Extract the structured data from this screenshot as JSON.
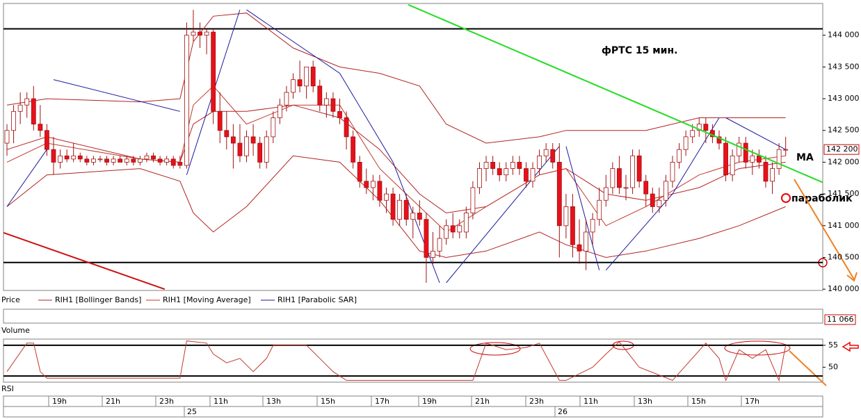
{
  "chart_data": {
    "type": "candlestick",
    "title": "фРТС   15 мин.",
    "annotations": {
      "ma": "МА",
      "sar": "параболик"
    },
    "last_price": {
      "value": 142200,
      "label": "142 200"
    },
    "ylim": [
      139980,
      144500
    ],
    "yticks": [
      {
        "value": 140000,
        "label": "140 000"
      },
      {
        "value": 140500,
        "label": "140 500"
      },
      {
        "value": 141000,
        "label": "141 000"
      },
      {
        "value": 141500,
        "label": "141 500"
      },
      {
        "value": 142000,
        "label": "142 000"
      },
      {
        "value": 142500,
        "label": "142 500"
      },
      {
        "value": 143000,
        "label": "143 000"
      },
      {
        "value": 143500,
        "label": "143 500"
      },
      {
        "value": 144000,
        "label": "144 000"
      }
    ],
    "hlines": [
      144100,
      140420
    ],
    "trendlines": [
      {
        "color": "#22dd22",
        "x": [
          60.3,
          122.6
        ],
        "values": [
          144480,
          141680
        ]
      },
      {
        "color": "#cc1111",
        "x": [
          -0.5,
          23.7
        ],
        "values": [
          140890,
          140000
        ]
      }
    ],
    "up_color": "#ffffff",
    "down_color": "#e8101a",
    "outline_color": "#a01010",
    "candles": [
      [
        142300,
        142600,
        142100,
        142500
      ],
      [
        142500,
        142900,
        142300,
        142800
      ],
      [
        142800,
        143100,
        142600,
        142900
      ],
      [
        142900,
        143100,
        142700,
        143000
      ],
      [
        143000,
        143200,
        142500,
        142600
      ],
      [
        142600,
        142900,
        142400,
        142500
      ],
      [
        142500,
        142600,
        142100,
        142200
      ],
      [
        142200,
        142400,
        141800,
        142000
      ],
      [
        142000,
        142200,
        141900,
        142100
      ],
      [
        142100,
        142200,
        142000,
        142050
      ],
      [
        142050,
        142300,
        142000,
        142100
      ],
      [
        142100,
        142150,
        142000,
        142050
      ],
      [
        142050,
        142100,
        141950,
        142000
      ],
      [
        142000,
        142100,
        141950,
        142050
      ],
      [
        142050,
        142100,
        142000,
        142050
      ],
      [
        142050,
        142100,
        141950,
        142000
      ],
      [
        142000,
        142100,
        141950,
        142050
      ],
      [
        142050,
        142100,
        142000,
        142000
      ],
      [
        142000,
        142100,
        141950,
        142050
      ],
      [
        142050,
        142100,
        141950,
        142000
      ],
      [
        142000,
        142100,
        141950,
        142050
      ],
      [
        142050,
        142150,
        142000,
        142100
      ],
      [
        142100,
        142150,
        142000,
        142050
      ],
      [
        142050,
        142100,
        141950,
        142000
      ],
      [
        142000,
        142100,
        141950,
        142050
      ],
      [
        142050,
        142100,
        141900,
        141950
      ],
      [
        142000,
        142100,
        141900,
        141950
      ],
      [
        141950,
        144200,
        141900,
        144000
      ],
      [
        144000,
        144400,
        143900,
        144050
      ],
      [
        144050,
        144200,
        143800,
        144000
      ],
      [
        144000,
        144100,
        143700,
        144050
      ],
      [
        144050,
        144100,
        142600,
        142800
      ],
      [
        142800,
        143100,
        142300,
        142500
      ],
      [
        142500,
        142800,
        142200,
        142400
      ],
      [
        142400,
        142600,
        141900,
        142300
      ],
      [
        142300,
        142600,
        142000,
        142100
      ],
      [
        142100,
        142500,
        142000,
        142400
      ],
      [
        142400,
        142600,
        142100,
        142300
      ],
      [
        142300,
        142400,
        141900,
        142000
      ],
      [
        142000,
        142500,
        141900,
        142400
      ],
      [
        142400,
        142800,
        142300,
        142700
      ],
      [
        142700,
        143000,
        142600,
        142900
      ],
      [
        142900,
        143200,
        142800,
        143100
      ],
      [
        143100,
        143400,
        143000,
        143300
      ],
      [
        143300,
        143600,
        143100,
        143200
      ],
      [
        143200,
        143500,
        143000,
        143500
      ],
      [
        143500,
        143600,
        143100,
        143200
      ],
      [
        143200,
        143300,
        142800,
        142900
      ],
      [
        142900,
        143100,
        142700,
        143000
      ],
      [
        143000,
        143100,
        142700,
        142800
      ],
      [
        142800,
        143000,
        142600,
        142700
      ],
      [
        142700,
        142800,
        142200,
        142400
      ],
      [
        142400,
        142500,
        141900,
        142000
      ],
      [
        142000,
        142100,
        141600,
        141700
      ],
      [
        141700,
        141900,
        141500,
        141600
      ],
      [
        141600,
        141800,
        141400,
        141700
      ],
      [
        141700,
        141800,
        141300,
        141400
      ],
      [
        141400,
        141600,
        141200,
        141500
      ],
      [
        141500,
        141600,
        141000,
        141100
      ],
      [
        141100,
        141500,
        141000,
        141400
      ],
      [
        141400,
        141500,
        141000,
        141100
      ],
      [
        141100,
        141300,
        140800,
        141200
      ],
      [
        141200,
        141400,
        141000,
        141100
      ],
      [
        141100,
        141200,
        140100,
        140500
      ],
      [
        140500,
        140900,
        140400,
        140600
      ],
      [
        140600,
        141000,
        140500,
        140800
      ],
      [
        140800,
        141100,
        140700,
        141000
      ],
      [
        141000,
        141200,
        140800,
        140900
      ],
      [
        140900,
        141100,
        140800,
        141000
      ],
      [
        140900,
        141300,
        140800,
        141200
      ],
      [
        141200,
        141700,
        141100,
        141600
      ],
      [
        141600,
        142000,
        141500,
        141900
      ],
      [
        141900,
        142100,
        141700,
        142000
      ],
      [
        142000,
        142100,
        141800,
        141900
      ],
      [
        141900,
        142000,
        141700,
        141800
      ],
      [
        141800,
        142000,
        141700,
        141900
      ],
      [
        141900,
        142100,
        141800,
        142000
      ],
      [
        142000,
        142100,
        141800,
        141900
      ],
      [
        141900,
        142000,
        141600,
        141700
      ],
      [
        141700,
        142000,
        141600,
        141900
      ],
      [
        141900,
        142200,
        141800,
        142100
      ],
      [
        142100,
        142300,
        142000,
        142200
      ],
      [
        142200,
        142300,
        141900,
        142000
      ],
      [
        142000,
        142300,
        140500,
        141000
      ],
      [
        141000,
        141500,
        140800,
        141300
      ],
      [
        141300,
        141500,
        140500,
        140700
      ],
      [
        140700,
        141100,
        140400,
        140600
      ],
      [
        140600,
        141100,
        140300,
        140900
      ],
      [
        140900,
        141200,
        140700,
        141100
      ],
      [
        141100,
        141600,
        141000,
        141400
      ],
      [
        141400,
        141800,
        141300,
        141600
      ],
      [
        141600,
        142000,
        141500,
        141900
      ],
      [
        141900,
        142100,
        141500,
        141600
      ],
      [
        141600,
        141800,
        141400,
        141600
      ],
      [
        141600,
        142200,
        141500,
        142100
      ],
      [
        142100,
        142200,
        141600,
        141700
      ],
      [
        141700,
        141800,
        141300,
        141500
      ],
      [
        141500,
        141600,
        141200,
        141300
      ],
      [
        141300,
        141600,
        141200,
        141400
      ],
      [
        141400,
        141800,
        141300,
        141700
      ],
      [
        141700,
        142100,
        141600,
        142000
      ],
      [
        142000,
        142300,
        141900,
        142200
      ],
      [
        142200,
        142500,
        142100,
        142400
      ],
      [
        142400,
        142600,
        142300,
        142500
      ],
      [
        142500,
        142700,
        142400,
        142600
      ],
      [
        142600,
        142700,
        142300,
        142500
      ],
      [
        142500,
        142600,
        142300,
        142400
      ],
      [
        142400,
        142500,
        142200,
        142300
      ],
      [
        142300,
        142400,
        141700,
        141800
      ],
      [
        141800,
        142200,
        141700,
        142100
      ],
      [
        142100,
        142400,
        142000,
        142300
      ],
      [
        142300,
        142400,
        141900,
        142000
      ],
      [
        142000,
        142200,
        141800,
        142100
      ],
      [
        142100,
        142200,
        141900,
        142000
      ],
      [
        142000,
        142100,
        141600,
        141700
      ],
      [
        141700,
        142000,
        141500,
        141900
      ],
      [
        141900,
        142300,
        141800,
        142200
      ],
      [
        142200,
        142400,
        142100,
        142200
      ]
    ],
    "price_label": "Price",
    "indicators": [
      {
        "name": "RIH1 [Bollinger Bands]",
        "color": "#b22222",
        "x": [
          0,
          6,
          20,
          26,
          28,
          31,
          36,
          43,
          50,
          56,
          62,
          66,
          72,
          80,
          84,
          90,
          96,
          104,
          110,
          117
        ],
        "bands": [
          [
            142900,
            143000,
            142950,
            143000,
            143900,
            144300,
            144350,
            143800,
            143500,
            143400,
            143200,
            142600,
            142300,
            142400,
            142500,
            142500,
            142500,
            142700,
            142700,
            142700
          ],
          [
            142200,
            142400,
            142050,
            142000,
            142600,
            142800,
            142800,
            142900,
            142700,
            142200,
            141500,
            141200,
            141300,
            141800,
            141900,
            141500,
            141400,
            141600,
            141900,
            142000
          ],
          [
            141300,
            141800,
            141900,
            141700,
            141200,
            140900,
            141300,
            142100,
            142000,
            141400,
            140600,
            140500,
            140600,
            140900,
            140700,
            140500,
            140600,
            140800,
            141000,
            141300
          ]
        ]
      },
      {
        "name": "RIH1 [Moving Average]",
        "color": "#c0392b",
        "x": [
          0,
          6,
          20,
          26,
          28,
          31,
          36,
          43,
          50,
          56,
          62,
          66,
          72,
          80,
          84,
          90,
          96,
          104,
          110,
          117
        ],
        "values": [
          142000,
          142300,
          142050,
          142000,
          142900,
          143200,
          142600,
          142900,
          142900,
          141900,
          141300,
          140900,
          141300,
          141800,
          141900,
          141000,
          141300,
          141800,
          142000,
          142100
        ]
      },
      {
        "name": "RIH1 [Parabolic SAR]",
        "color": "#1a1a9c",
        "x": [
          0,
          6,
          null,
          7,
          26,
          null,
          27,
          35,
          null,
          36,
          50,
          58,
          65,
          null,
          66,
          83,
          null,
          84,
          89,
          null,
          90,
          100,
          107,
          null,
          108,
          117
        ],
        "values": [
          141300,
          142200,
          null,
          143300,
          142800,
          null,
          141800,
          144400,
          null,
          144400,
          143400,
          142000,
          140100,
          null,
          140100,
          142250,
          null,
          142250,
          140300,
          null,
          140300,
          141500,
          142700,
          null,
          142700,
          142200
        ]
      }
    ],
    "volume": {
      "label": "Volume",
      "last": {
        "value": 11066,
        "label": "11 066"
      }
    },
    "rsi": {
      "label": "RSI",
      "ylim": [
        46.9,
        56.1
      ],
      "yticks": [
        55,
        50
      ],
      "levels": [
        55,
        48
      ],
      "x": [
        0,
        3,
        4,
        5,
        6,
        8,
        10,
        20,
        25,
        26,
        27,
        30,
        31,
        33,
        35,
        37,
        39,
        40,
        45,
        47,
        49,
        51,
        53,
        55,
        60,
        65,
        70,
        72,
        75,
        78,
        80,
        83,
        84,
        88,
        90,
        92,
        95,
        100,
        105,
        107,
        108,
        110,
        112,
        114,
        116,
        117
      ],
      "values": [
        49,
        55.5,
        55.5,
        49,
        47.5,
        47.5,
        47.5,
        47.5,
        47.5,
        47.5,
        56,
        55.5,
        53,
        51,
        52,
        49,
        52,
        55,
        55,
        52,
        49,
        47,
        47,
        47,
        47,
        47,
        47,
        55.5,
        54,
        54.5,
        55.5,
        47,
        47,
        50,
        53,
        55.8,
        50,
        47,
        55.5,
        52,
        47,
        54,
        52,
        54,
        47,
        55
      ]
    },
    "time_axis": [
      "19h",
      "21h",
      "23h",
      "11h",
      "13h",
      "15h",
      "17h",
      "19h",
      "21h",
      "23h",
      "11h",
      "13h",
      "15h",
      "17h"
    ],
    "days": [
      "25",
      "26"
    ]
  }
}
